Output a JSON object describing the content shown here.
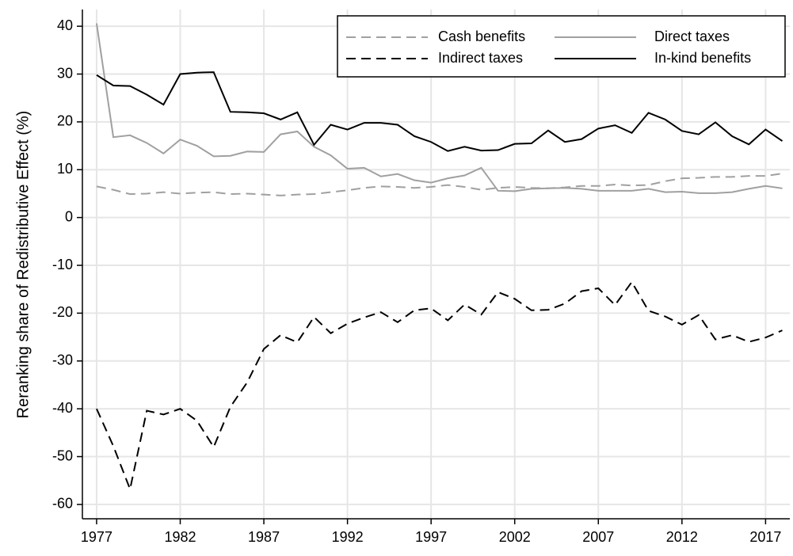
{
  "chart_data": {
    "type": "line",
    "y_label": "Reranking share of Redistributive Effect (%)",
    "x": [
      1977,
      1978,
      1979,
      1980,
      1981,
      1982,
      1983,
      1984,
      1985,
      1986,
      1987,
      1988,
      1989,
      1990,
      1991,
      1992,
      1993,
      1994,
      1995,
      1996,
      1997,
      1998,
      1999,
      2000,
      2001,
      2002,
      2003,
      2004,
      2005,
      2006,
      2007,
      2008,
      2009,
      2010,
      2011,
      2012,
      2013,
      2014,
      2015,
      2016,
      2017,
      2018
    ],
    "series": [
      {
        "name": "Cash benefits",
        "color": "#a0a0a0",
        "dashed": true,
        "values": [
          6.5,
          5.8,
          4.9,
          5.0,
          5.3,
          5.0,
          5.2,
          5.3,
          4.9,
          5.0,
          4.8,
          4.6,
          4.8,
          4.9,
          5.3,
          5.7,
          6.2,
          6.5,
          6.4,
          6.2,
          6.4,
          6.8,
          6.4,
          5.8,
          6.2,
          6.4,
          6.2,
          6.1,
          6.3,
          6.6,
          6.6,
          6.9,
          6.7,
          6.8,
          7.6,
          8.2,
          8.3,
          8.5,
          8.5,
          8.7,
          8.7,
          9.2
        ]
      },
      {
        "name": "Direct taxes",
        "color": "#a0a0a0",
        "dashed": false,
        "values": [
          40.6,
          16.8,
          17.2,
          15.6,
          13.4,
          16.3,
          15.0,
          12.8,
          12.9,
          13.8,
          13.7,
          17.4,
          18.0,
          14.8,
          13.0,
          10.2,
          10.4,
          8.6,
          9.1,
          7.8,
          7.3,
          8.2,
          8.8,
          10.4,
          5.6,
          5.5,
          6.0,
          6.1,
          6.2,
          6.0,
          5.6,
          5.6,
          5.6,
          6.0,
          5.3,
          5.4,
          5.1,
          5.1,
          5.3,
          6.0,
          6.6,
          6.1
        ]
      },
      {
        "name": "Indirect taxes",
        "color": "#000000",
        "dashed": true,
        "values": [
          -40.0,
          -47.8,
          -56.8,
          -40.4,
          -41.2,
          -40.0,
          -42.5,
          -48.0,
          -39.6,
          -34.5,
          -27.5,
          -24.6,
          -26.1,
          -20.8,
          -24.2,
          -22.2,
          -20.9,
          -19.8,
          -21.9,
          -19.4,
          -19.0,
          -21.5,
          -18.2,
          -20.3,
          -15.6,
          -17.0,
          -19.4,
          -19.3,
          -18.0,
          -15.4,
          -14.8,
          -18.3,
          -13.5,
          -19.5,
          -20.7,
          -22.4,
          -20.4,
          -25.5,
          -24.6,
          -26.0,
          -25.1,
          -23.6
        ]
      },
      {
        "name": "In-kind benefits",
        "color": "#000000",
        "dashed": false,
        "values": [
          29.8,
          27.6,
          27.5,
          25.7,
          23.6,
          30.0,
          30.3,
          30.4,
          22.1,
          22.0,
          21.8,
          20.5,
          22.0,
          15.2,
          19.4,
          18.4,
          19.8,
          19.8,
          19.4,
          17.0,
          15.8,
          13.9,
          14.8,
          14.0,
          14.1,
          15.4,
          15.5,
          18.2,
          15.8,
          16.4,
          18.6,
          19.3,
          17.7,
          21.9,
          20.5,
          18.1,
          17.4,
          19.9,
          17.0,
          15.3,
          18.4,
          16.0
        ]
      }
    ],
    "xlim": [
      1976.15,
      2018.45
    ],
    "xticks": [
      1977,
      1982,
      1987,
      1992,
      1997,
      2002,
      2007,
      2012,
      2017
    ],
    "ylim": [
      -63,
      43.5
    ],
    "yticks": [
      -60,
      -50,
      -40,
      -30,
      -20,
      -10,
      0,
      10,
      20,
      30,
      40
    ],
    "grid": true,
    "legend": "top-right"
  }
}
